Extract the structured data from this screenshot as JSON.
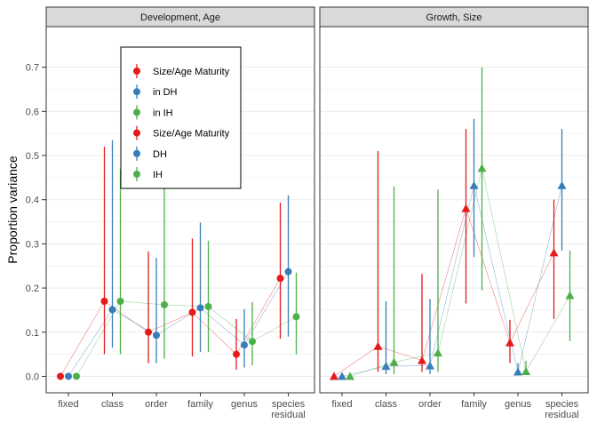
{
  "chart_data": {
    "type": "scatter",
    "ylabel": "Proportion variance",
    "yticks": [
      "0.0",
      "0.1",
      "0.2",
      "0.3",
      "0.4",
      "0.5",
      "0.6",
      "0.7"
    ],
    "ylim": [
      0,
      0.7
    ],
    "categories": [
      "fixed",
      "class",
      "order",
      "family",
      "genus",
      "species\nresidual"
    ],
    "colors": {
      "red": "#E41A1C",
      "blue": "#377EB8",
      "green": "#4DAF4A"
    },
    "legend": {
      "placement": "inside top-left of left panel",
      "entries": [
        {
          "label": "Size/Age Maturity",
          "color": "#E41A1C",
          "shape": "circle"
        },
        {
          "label": "in DH",
          "color": "#377EB8",
          "shape": "circle"
        },
        {
          "label": "in IH",
          "color": "#4DAF4A",
          "shape": "circle"
        },
        {
          "label": "Size/Age Maturity",
          "color": "#E41A1C",
          "shape": "circle"
        },
        {
          "label": "DH",
          "color": "#377EB8",
          "shape": "circle"
        },
        {
          "label": "IH",
          "color": "#4DAF4A",
          "shape": "circle"
        }
      ]
    },
    "panels": [
      {
        "title": "Development, Age",
        "shape": "circle",
        "series": [
          {
            "color": "#E41A1C",
            "values": [
              0.0,
              0.17,
              0.1,
              0.145,
              0.05,
              0.222
            ],
            "lower": [
              0.0,
              0.05,
              0.03,
              0.045,
              0.015,
              0.085
            ],
            "upper": [
              0.0,
              0.52,
              0.283,
              0.312,
              0.13,
              0.393
            ]
          },
          {
            "color": "#377EB8",
            "values": [
              0.0,
              0.151,
              0.093,
              0.155,
              0.071,
              0.237
            ],
            "lower": [
              0.0,
              0.065,
              0.03,
              0.055,
              0.02,
              0.09
            ],
            "upper": [
              0.0,
              0.535,
              0.268,
              0.348,
              0.152,
              0.41
            ]
          },
          {
            "color": "#4DAF4A",
            "values": [
              0.0,
              0.17,
              0.162,
              0.158,
              0.079,
              0.135
            ],
            "lower": [
              0.0,
              0.05,
              0.04,
              0.055,
              0.025,
              0.05
            ],
            "upper": [
              0.0,
              0.47,
              0.47,
              0.307,
              0.168,
              0.235
            ]
          }
        ]
      },
      {
        "title": "Growth, Size",
        "shape": "triangle",
        "series": [
          {
            "color": "#E41A1C",
            "values": [
              0.0,
              0.068,
              0.036,
              0.38,
              0.076,
              0.28
            ],
            "lower": [
              0.0,
              0.01,
              0.01,
              0.165,
              0.03,
              0.13
            ],
            "upper": [
              0.0,
              0.51,
              0.232,
              0.56,
              0.128,
              0.4
            ]
          },
          {
            "color": "#377EB8",
            "values": [
              0.0,
              0.023,
              0.024,
              0.432,
              0.01,
              0.432
            ],
            "lower": [
              0.0,
              0.005,
              0.005,
              0.27,
              0.002,
              0.285
            ],
            "upper": [
              0.0,
              0.17,
              0.175,
              0.583,
              0.03,
              0.56
            ]
          },
          {
            "color": "#4DAF4A",
            "values": [
              0.0,
              0.032,
              0.053,
              0.471,
              0.011,
              0.183
            ],
            "lower": [
              0.0,
              0.005,
              0.01,
              0.195,
              0.003,
              0.08
            ],
            "upper": [
              0.0,
              0.43,
              0.423,
              0.7,
              0.035,
              0.285
            ]
          }
        ]
      }
    ]
  }
}
